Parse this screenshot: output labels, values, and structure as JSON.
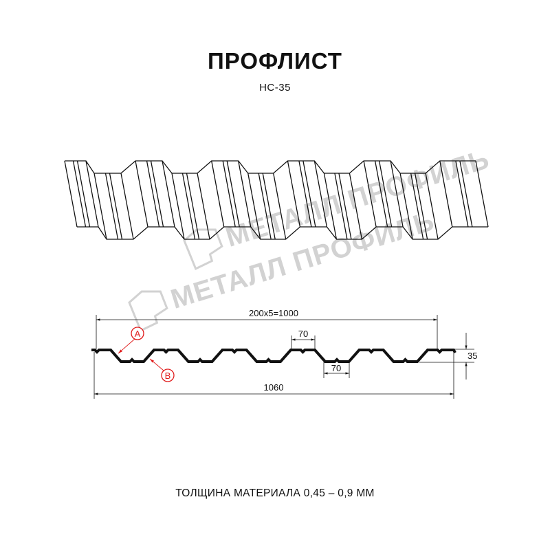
{
  "header": {
    "title": "ПРОФЛИСТ",
    "model": "НС-35"
  },
  "watermark": {
    "text": "МЕТАЛЛ ПРОФИЛЬ"
  },
  "drawing": {
    "pitch_label": "200x5=1000",
    "total_width_label": "1060",
    "top_flat_label": "70",
    "bottom_flat_label": "70",
    "height_label": "35",
    "marker_a": "A",
    "marker_b": "B",
    "marker_color": "#e01b1b"
  },
  "footer": {
    "thickness": "ТОЛЩИНА МАТЕРИАЛА 0,45 – 0,9 ММ"
  }
}
